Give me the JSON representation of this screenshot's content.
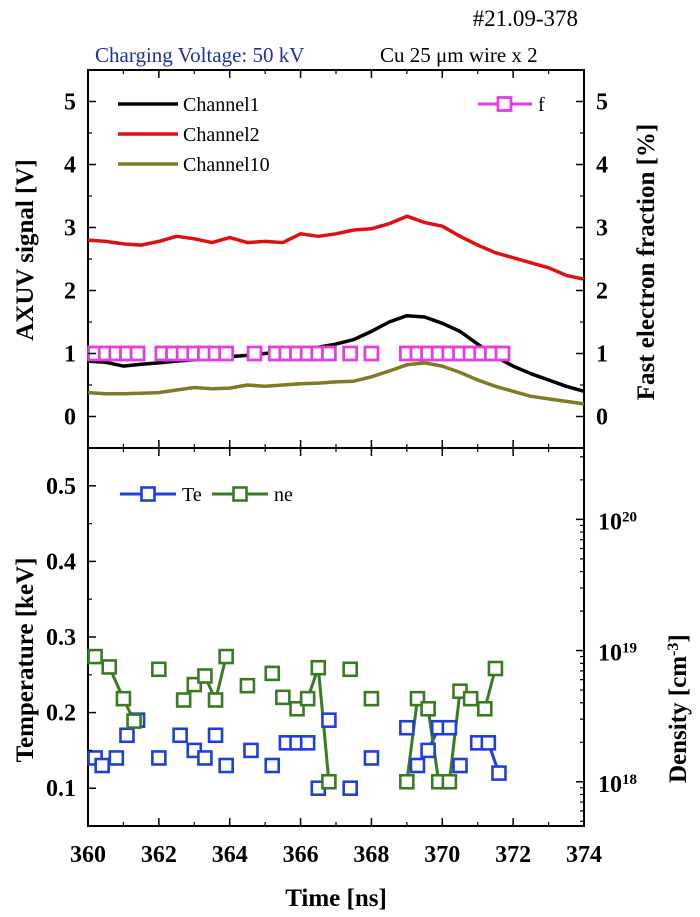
{
  "header": {
    "shot_id": "#21.09-378",
    "voltage_label": "Charging Voltage: 50 kV",
    "target_label": "Cu 25 μm wire x 2"
  },
  "colors": {
    "channel1": "#000000",
    "channel2": "#dd1111",
    "channel10": "#7f7a24",
    "f": "#e040e0",
    "te": "#1f3fd6",
    "ne": "#3a7a22",
    "voltage_text": "#1f2fa0"
  },
  "chart_data": [
    {
      "type": "line",
      "panel": "top",
      "xlabel": "",
      "ylabel": "AXUV signal [V]",
      "y2label": "Fast electron fraction [%]",
      "xlim": [
        360,
        374
      ],
      "ylim": [
        -0.5,
        5.5
      ],
      "y2lim": [
        -0.5,
        5.5
      ],
      "grid": false,
      "legend_left": "top-left",
      "legend_right": "top-right",
      "yticks": [
        "0",
        "1",
        "2",
        "3",
        "4",
        "5"
      ],
      "y2ticks": [
        "0",
        "1",
        "2",
        "3",
        "4",
        "5"
      ],
      "series": [
        {
          "name": "Channel1",
          "axis": "left",
          "x": [
            360.0,
            360.5,
            361.0,
            361.5,
            362.0,
            362.5,
            363.0,
            363.5,
            364.0,
            364.5,
            365.0,
            365.5,
            366.0,
            366.5,
            367.0,
            367.5,
            368.0,
            368.5,
            369.0,
            369.5,
            370.0,
            370.5,
            371.0,
            371.5,
            372.0,
            372.5,
            373.0,
            373.5,
            374.0
          ],
          "y": [
            0.88,
            0.86,
            0.8,
            0.83,
            0.85,
            0.88,
            0.9,
            0.92,
            0.95,
            0.97,
            1.0,
            1.03,
            1.05,
            1.1,
            1.15,
            1.22,
            1.35,
            1.5,
            1.6,
            1.58,
            1.48,
            1.35,
            1.15,
            0.95,
            0.8,
            0.68,
            0.58,
            0.48,
            0.4
          ]
        },
        {
          "name": "Channel2",
          "axis": "left",
          "x": [
            360.0,
            360.5,
            361.0,
            361.5,
            362.0,
            362.5,
            363.0,
            363.5,
            364.0,
            364.5,
            365.0,
            365.5,
            366.0,
            366.5,
            367.0,
            367.5,
            368.0,
            368.5,
            369.0,
            369.5,
            370.0,
            370.5,
            371.0,
            371.5,
            372.0,
            372.5,
            373.0,
            373.5,
            374.0
          ],
          "y": [
            2.8,
            2.78,
            2.74,
            2.72,
            2.78,
            2.86,
            2.82,
            2.76,
            2.84,
            2.76,
            2.78,
            2.76,
            2.9,
            2.86,
            2.9,
            2.96,
            2.98,
            3.06,
            3.18,
            3.08,
            3.02,
            2.86,
            2.72,
            2.6,
            2.52,
            2.44,
            2.36,
            2.24,
            2.18
          ]
        },
        {
          "name": "Channel10",
          "axis": "left",
          "x": [
            360.0,
            360.5,
            361.0,
            361.5,
            362.0,
            362.5,
            363.0,
            363.5,
            364.0,
            364.5,
            365.0,
            365.5,
            366.0,
            366.5,
            367.0,
            367.5,
            368.0,
            368.5,
            369.0,
            369.5,
            370.0,
            370.5,
            371.0,
            371.5,
            372.0,
            372.5,
            373.0,
            373.5,
            374.0
          ],
          "y": [
            0.38,
            0.36,
            0.36,
            0.37,
            0.38,
            0.42,
            0.46,
            0.44,
            0.45,
            0.5,
            0.48,
            0.5,
            0.52,
            0.53,
            0.55,
            0.56,
            0.63,
            0.72,
            0.82,
            0.85,
            0.8,
            0.7,
            0.58,
            0.48,
            0.4,
            0.32,
            0.28,
            0.24,
            0.2
          ]
        },
        {
          "name": "f",
          "axis": "right",
          "marker": "square",
          "x": [
            360.2,
            360.5,
            360.8,
            361.1,
            361.4,
            362.1,
            362.4,
            362.7,
            363.0,
            363.3,
            363.6,
            363.9,
            364.7,
            365.3,
            365.6,
            365.9,
            366.2,
            366.5,
            366.8,
            367.4,
            368.0,
            369.0,
            369.3,
            369.6,
            369.9,
            370.2,
            370.5,
            370.8,
            371.1,
            371.4,
            371.7
          ],
          "y": [
            1,
            1,
            1,
            1,
            1,
            1,
            1,
            1,
            1,
            1,
            1,
            1,
            1,
            1,
            1,
            1,
            1,
            1,
            1,
            1,
            1,
            1,
            1,
            1,
            1,
            1,
            1,
            1,
            1,
            1,
            1
          ]
        }
      ]
    },
    {
      "type": "scatter",
      "panel": "bottom",
      "xlabel": "Time [ns]",
      "ylabel": "Temperature [keV]",
      "y2label": "Density [cm-3]",
      "xlim": [
        360,
        374
      ],
      "xticks": [
        "360",
        "362",
        "364",
        "366",
        "368",
        "370",
        "372",
        "374"
      ],
      "ylim": [
        0.05,
        0.55
      ],
      "yticks": [
        "0.1",
        "0.2",
        "0.3",
        "0.4",
        "0.5"
      ],
      "y2scale": "log",
      "y2lim": [
        4.6e+17,
        3.5e+20
      ],
      "y2ticks": [
        {
          "value": 1e+18,
          "mantissa": "10",
          "exponent": "18"
        },
        {
          "value": 1e+19,
          "mantissa": "10",
          "exponent": "19"
        },
        {
          "value": 1e+20,
          "mantissa": "10",
          "exponent": "20"
        }
      ],
      "grid": false,
      "legend": "top-left",
      "series": [
        {
          "name": "Te",
          "axis": "left",
          "marker": "square",
          "points": [
            [
              360.2,
              0.14
            ],
            [
              360.4,
              0.13
            ],
            [
              360.8,
              0.14
            ],
            [
              361.1,
              0.17
            ],
            [
              361.4,
              0.19
            ],
            [
              362.0,
              0.14
            ],
            [
              362.6,
              0.17
            ],
            [
              363.0,
              0.15
            ],
            [
              363.3,
              0.14
            ],
            [
              363.6,
              0.17
            ],
            [
              363.9,
              0.13
            ],
            [
              364.6,
              0.15
            ],
            [
              365.2,
              0.13
            ],
            [
              365.6,
              0.16
            ],
            [
              365.9,
              0.16
            ],
            [
              366.2,
              0.16
            ],
            [
              366.5,
              0.1
            ],
            [
              366.8,
              0.19
            ],
            [
              367.4,
              0.1
            ],
            [
              368.0,
              0.14
            ],
            [
              369.0,
              0.18
            ],
            [
              369.3,
              0.13
            ],
            [
              369.6,
              0.15
            ],
            [
              369.9,
              0.18
            ],
            [
              370.2,
              0.18
            ],
            [
              370.5,
              0.13
            ],
            [
              371.0,
              0.16
            ],
            [
              371.3,
              0.16
            ],
            [
              371.6,
              0.12
            ]
          ],
          "segments": [
            [
              [
                361.1,
                0.17
              ],
              [
                361.4,
                0.19
              ]
            ],
            [
              [
                369.6,
                0.15
              ],
              [
                369.9,
                0.18
              ]
            ],
            [
              [
                371.3,
                0.16
              ],
              [
                371.6,
                0.12
              ]
            ]
          ]
        },
        {
          "name": "ne",
          "axis": "right",
          "marker": "square",
          "points": [
            [
              360.2,
              9e+18
            ],
            [
              360.6,
              7.5e+18
            ],
            [
              361.0,
              4.3e+18
            ],
            [
              361.3,
              2.9e+18
            ],
            [
              362.0,
              7.2e+18
            ],
            [
              362.7,
              4.2e+18
            ],
            [
              363.0,
              5.5e+18
            ],
            [
              363.3,
              6.4e+18
            ],
            [
              363.6,
              4.2e+18
            ],
            [
              363.9,
              9e+18
            ],
            [
              364.5,
              5.4e+18
            ],
            [
              365.2,
              6.7e+18
            ],
            [
              365.5,
              4.4e+18
            ],
            [
              365.9,
              3.6e+18
            ],
            [
              366.2,
              4.3e+18
            ],
            [
              366.5,
              7.4e+18
            ],
            [
              366.8,
              1e+18
            ],
            [
              367.4,
              7.2e+18
            ],
            [
              368.0,
              4.3e+18
            ],
            [
              369.0,
              1e+18
            ],
            [
              369.3,
              4.3e+18
            ],
            [
              369.6,
              3.6e+18
            ],
            [
              369.9,
              1e+18
            ],
            [
              370.2,
              1e+18
            ],
            [
              370.5,
              4.9e+18
            ],
            [
              370.8,
              4.3e+18
            ],
            [
              371.2,
              3.6e+18
            ],
            [
              371.5,
              7.3e+18
            ]
          ],
          "segments": [
            [
              [
                360.2,
                9e+18
              ],
              [
                360.6,
                7.5e+18
              ]
            ],
            [
              [
                360.6,
                7.5e+18
              ],
              [
                361.0,
                4.3e+18
              ]
            ],
            [
              [
                361.0,
                4.3e+18
              ],
              [
                361.3,
                2.9e+18
              ]
            ],
            [
              [
                363.3,
                6.4e+18
              ],
              [
                363.6,
                4.2e+18
              ]
            ],
            [
              [
                363.6,
                4.2e+18
              ],
              [
                363.9,
                9e+18
              ]
            ],
            [
              [
                365.5,
                4.4e+18
              ],
              [
                365.9,
                3.6e+18
              ]
            ],
            [
              [
                366.2,
                4.3e+18
              ],
              [
                366.5,
                7.4e+18
              ]
            ],
            [
              [
                366.5,
                7.4e+18
              ],
              [
                366.8,
                1e+18
              ]
            ],
            [
              [
                369.0,
                1e+18
              ],
              [
                369.3,
                4.3e+18
              ]
            ],
            [
              [
                369.6,
                3.6e+18
              ],
              [
                369.9,
                1e+18
              ]
            ],
            [
              [
                370.2,
                1e+18
              ],
              [
                370.5,
                4.9e+18
              ]
            ],
            [
              [
                371.2,
                3.6e+18
              ],
              [
                371.5,
                7.3e+18
              ]
            ]
          ]
        }
      ]
    }
  ]
}
